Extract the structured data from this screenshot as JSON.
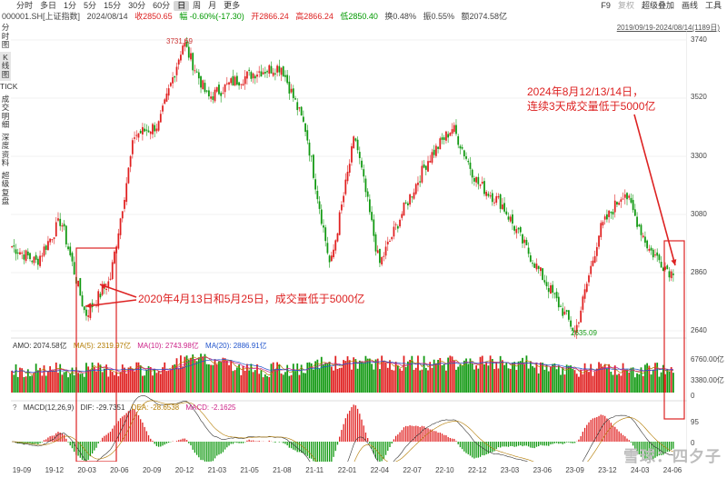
{
  "toolbar": {
    "periods": [
      "分时",
      "多日",
      "1分",
      "5分",
      "15分",
      "30分",
      "60分",
      "日",
      "周",
      "月",
      "更多"
    ],
    "active_period": "日",
    "right": {
      "f9": "F9",
      "fuquan": "复权",
      "overlay": "超级叠加",
      "draw": "画线",
      "tools": "工具"
    }
  },
  "quote": {
    "code": "000001.SH[上证指数]",
    "date": "2024/08/14",
    "close": "收2850.65",
    "change": "幅 -0.60%(-17.30)",
    "open": "开2866.24",
    "high": "高2866.24",
    "low": "低2850.40",
    "turnover": "换0.48%",
    "amplitude": "振0.55%",
    "amount": "额2074.58亿"
  },
  "sidebar": [
    "分时图",
    "K线图",
    "TICK",
    "成交明细",
    "深度资料",
    "超级复盘"
  ],
  "sidebar_active": 1,
  "date_range": "2019/09/19-2024/08/14(1189日)",
  "price_axis": [
    "3740",
    "3520",
    "3300",
    "3080",
    "2860",
    "2640"
  ],
  "price_markers": {
    "high": "3731.69",
    "low": "2635.09"
  },
  "volume_axis": [
    "6760.00亿",
    "3380.00亿",
    "0"
  ],
  "macd_axis": [
    "95",
    "0"
  ],
  "volume_labels": {
    "amo": "AMO: 2074.58亿",
    "ma5": "MA(5): 2319.97亿",
    "ma10": "MA(10): 2743.98亿",
    "ma20": "MA(20): 2886.91亿"
  },
  "macd_labels": {
    "q": "?",
    "name": "MACD(12,26,9)",
    "dif": "DIF: -29.7351",
    "dea": "DEA: -28.6538",
    "macd": "MACD: -2.1625"
  },
  "x_axis": [
    "19-09",
    "19-12",
    "20-03",
    "20-06",
    "20-09",
    "20-12",
    "21-03",
    "21-05",
    "21-08",
    "21-11",
    "22-01",
    "22-04",
    "22-07",
    "22-10",
    "22-12",
    "23-03",
    "23-06",
    "23-09",
    "23-12",
    "24-03",
    "24-06"
  ],
  "annotations": {
    "left": "2020年4月13日和5月25日，成交量低于5000亿",
    "right_line1": "2024年8月12/13/14日，",
    "right_line2": "连续3天成交量低于5000亿"
  },
  "watermark": "雪球：四夕子",
  "colors": {
    "up": "#e02020",
    "down": "#119911",
    "annotation": "#dd2222",
    "ma5": "#b37b00",
    "ma10": "#cc2288",
    "ma20": "#2255cc"
  },
  "chart_data": {
    "type": "candlestick",
    "price_range": [
      2640,
      3740
    ],
    "series": [
      {
        "name": "上证指数",
        "x": [
          "19-09",
          "19-12",
          "20-03",
          "20-04",
          "20-06",
          "20-09",
          "20-12",
          "21-02",
          "21-05",
          "21-08",
          "21-11",
          "21-12",
          "22-01",
          "22-04",
          "22-07",
          "22-10",
          "22-12",
          "23-03",
          "23-05",
          "23-06",
          "23-09",
          "23-12",
          "24-01",
          "24-02",
          "24-03",
          "24-05",
          "24-06",
          "24-08"
        ],
        "values": [
          2960,
          2900,
          3060,
          2700,
          2830,
          3380,
          3420,
          3731.69,
          3520,
          3580,
          3620,
          3640,
          3400,
          2880,
          3380,
          2890,
          3100,
          3290,
          3410,
          3200,
          3120,
          2950,
          2790,
          2635.09,
          3020,
          3170,
          2950,
          2850.65
        ]
      }
    ]
  }
}
